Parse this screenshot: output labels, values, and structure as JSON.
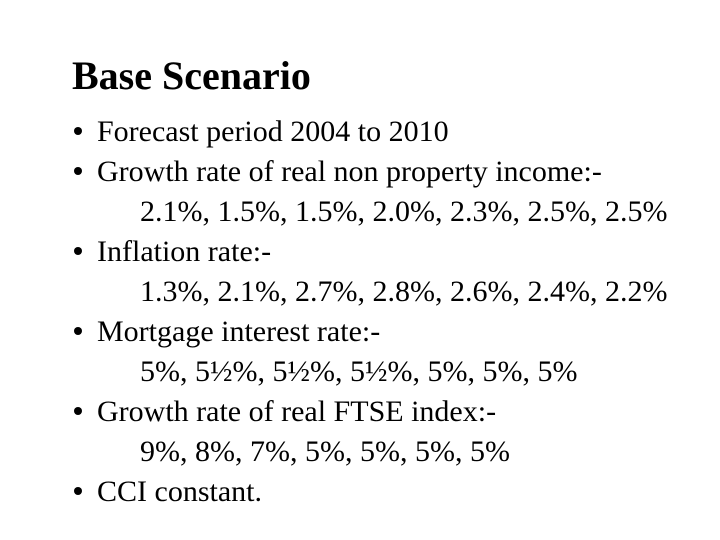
{
  "slide": {
    "title": "Base Scenario",
    "colors": {
      "background": "#ffffff",
      "text": "#000000"
    },
    "bullets": [
      {
        "label": "Forecast period 2004 to 2010",
        "values": ""
      },
      {
        "label": "Growth rate of real non property income:-",
        "values": "2.1%, 1.5%, 1.5%, 2.0%, 2.3%, 2.5%, 2.5%"
      },
      {
        "label": "Inflation rate:-",
        "values": "1.3%, 2.1%, 2.7%, 2.8%, 2.6%, 2.4%, 2.2%"
      },
      {
        "label": "Mortgage interest rate:-",
        "values": "5%, 5½%, 5½%, 5½%, 5%, 5%, 5%"
      },
      {
        "label": "Growth rate of real FTSE index:-",
        "values": "9%, 8%, 7%, 5%, 5%, 5%, 5%"
      },
      {
        "label": "CCI constant.",
        "values": ""
      }
    ]
  }
}
